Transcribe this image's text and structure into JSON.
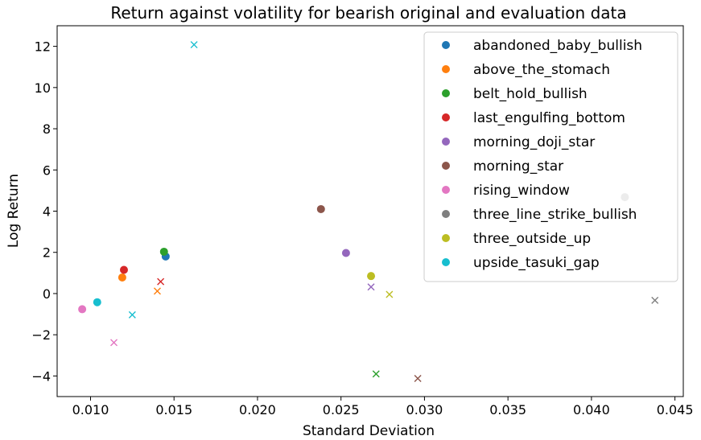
{
  "chart_data": {
    "type": "scatter",
    "title": "Return against volatility for bearish original and evaluation data",
    "xlabel": "Standard Deviation",
    "ylabel": "Log Return",
    "xlim": [
      0.008,
      0.0455
    ],
    "ylim": [
      -5.0,
      13.0
    ],
    "xticks": [
      0.01,
      0.015,
      0.02,
      0.025,
      0.03,
      0.035,
      0.04,
      0.045
    ],
    "xtick_labels": [
      "0.010",
      "0.015",
      "0.020",
      "0.025",
      "0.030",
      "0.035",
      "0.040",
      "0.045"
    ],
    "yticks": [
      -4,
      -2,
      0,
      2,
      4,
      6,
      8,
      10,
      12
    ],
    "ytick_labels": [
      "−4",
      "−2",
      "0",
      "2",
      "4",
      "6",
      "8",
      "10",
      "12"
    ],
    "grid": false,
    "legend_position": "top-right",
    "series": [
      {
        "name": "abandoned_baby_bullish",
        "color": "#1f77b4",
        "original": [
          0.0145,
          1.8
        ],
        "evaluation": null
      },
      {
        "name": "above_the_stomach",
        "color": "#ff7f0e",
        "original": [
          0.0119,
          0.78
        ],
        "evaluation": [
          0.014,
          0.12
        ]
      },
      {
        "name": "belt_hold_bullish",
        "color": "#2ca02c",
        "original": [
          0.0144,
          2.03
        ],
        "evaluation": [
          0.0271,
          -3.9
        ]
      },
      {
        "name": "last_engulfing_bottom",
        "color": "#d62728",
        "original": [
          0.012,
          1.15
        ],
        "evaluation": [
          0.0142,
          0.58
        ]
      },
      {
        "name": "morning_doji_star",
        "color": "#9467bd",
        "original": [
          0.0253,
          1.97
        ],
        "evaluation": [
          0.0268,
          0.32
        ]
      },
      {
        "name": "morning_star",
        "color": "#8c564b",
        "original": [
          0.0238,
          4.1
        ],
        "evaluation": [
          0.0296,
          -4.12
        ]
      },
      {
        "name": "rising_window",
        "color": "#e377c2",
        "original": [
          0.0095,
          -0.76
        ],
        "evaluation": [
          0.0114,
          -2.38
        ]
      },
      {
        "name": "three_line_strike_bullish",
        "color": "#7f7f7f",
        "original": [
          0.042,
          4.68
        ],
        "evaluation": [
          0.0438,
          -0.33
        ]
      },
      {
        "name": "three_outside_up",
        "color": "#bcbd22",
        "original": [
          0.0268,
          0.85
        ],
        "evaluation": [
          0.0279,
          -0.04
        ]
      },
      {
        "name": "upside_tasuki_gap",
        "color": "#17becf",
        "original": [
          0.0104,
          -0.42
        ],
        "evaluation": [
          0.0162,
          12.08
        ]
      },
      {
        "name": "upside_tasuki_gap",
        "color": "#17becf",
        "original": null,
        "evaluation": [
          0.0125,
          -1.03
        ]
      }
    ],
    "legend": [
      {
        "name": "abandoned_baby_bullish",
        "color": "#1f77b4"
      },
      {
        "name": "above_the_stomach",
        "color": "#ff7f0e"
      },
      {
        "name": "belt_hold_bullish",
        "color": "#2ca02c"
      },
      {
        "name": "last_engulfing_bottom",
        "color": "#d62728"
      },
      {
        "name": "morning_doji_star",
        "color": "#9467bd"
      },
      {
        "name": "morning_star",
        "color": "#8c564b"
      },
      {
        "name": "rising_window",
        "color": "#e377c2"
      },
      {
        "name": "three_line_strike_bullish",
        "color": "#7f7f7f"
      },
      {
        "name": "three_outside_up",
        "color": "#bcbd22"
      },
      {
        "name": "upside_tasuki_gap",
        "color": "#17becf"
      }
    ]
  }
}
